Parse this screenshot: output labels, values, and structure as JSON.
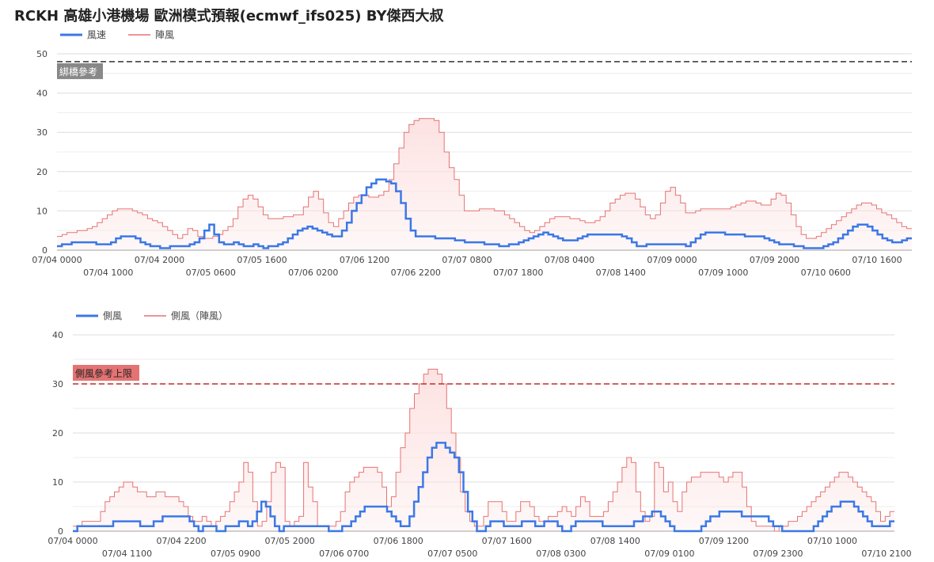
{
  "title": "RCKH 高雄小港機場 歐洲模式預報(ecmwf_ifs025)  BY傑西大叔",
  "chart_data": [
    {
      "type": "line",
      "legend_placement": "top-left",
      "grid": true,
      "ylim": [
        0,
        50
      ],
      "yticks": [
        0,
        10,
        20,
        30,
        40,
        50
      ],
      "x_tick_labels_top": [
        "07/04 0000",
        "07/04 2000",
        "07/05 1600",
        "07/06 1200",
        "07/07 0800",
        "07/08 0400",
        "07/09 0000",
        "07/09 2000",
        "07/10 1600"
      ],
      "x_tick_labels_bottom": [
        "07/04 1000",
        "07/05 0600",
        "07/06 0200",
        "07/06 2200",
        "07/07 1800",
        "07/08 1400",
        "07/09 1000",
        "07/10 0600"
      ],
      "reference_line": {
        "value": 48,
        "label": "綁橋參考",
        "color": "#333333",
        "label_bg": "#888888"
      },
      "colors": {
        "line": "#3b78e7",
        "gust": "#e57373",
        "fill": "#fde2e2"
      },
      "series": [
        {
          "name": "風速",
          "values": [
            1,
            1.5,
            1.5,
            2,
            2,
            2,
            2,
            2,
            1.5,
            1.5,
            1.5,
            2,
            3,
            3.5,
            3.5,
            3.5,
            3,
            2,
            1.5,
            1,
            1,
            0.5,
            0.5,
            1,
            1,
            1,
            1,
            1.5,
            2,
            3,
            5,
            6.5,
            4,
            2,
            1.5,
            1.5,
            2,
            1.5,
            1,
            1,
            1.5,
            1,
            0.5,
            1,
            1,
            1.5,
            2,
            3,
            4,
            5,
            5.5,
            6,
            5.5,
            5,
            4.5,
            4,
            3.5,
            3.5,
            5,
            7,
            10,
            12,
            14,
            16,
            17,
            18,
            18,
            17.5,
            17,
            15,
            12,
            8,
            5,
            3.5,
            3.5,
            3.5,
            3.5,
            3,
            3,
            3,
            3,
            2.5,
            2.5,
            2,
            2,
            2,
            2,
            1.5,
            1.5,
            1.5,
            1,
            1,
            1.5,
            1.5,
            2,
            2.5,
            3,
            3.5,
            4,
            4.5,
            4,
            3.5,
            3,
            2.5,
            2.5,
            2.5,
            3,
            3.5,
            4,
            4,
            4,
            4,
            4,
            4,
            4,
            3.5,
            3,
            2,
            1,
            1,
            1.5,
            1.5,
            1.5,
            1.5,
            1.5,
            1.5,
            1.5,
            1.5,
            1,
            2,
            3,
            4,
            4.5,
            4.5,
            4.5,
            4.5,
            4,
            4,
            4,
            4,
            3.5,
            3.5,
            3.5,
            3.5,
            3,
            2.5,
            2,
            1.5,
            1.5,
            1.5,
            1,
            1,
            0.5,
            0.5,
            0.5,
            0.5,
            1,
            1.5,
            2,
            3,
            4,
            5,
            6,
            6.5,
            6.5,
            6,
            5,
            4,
            3,
            2.5,
            2,
            2,
            2.5,
            3
          ]
        },
        {
          "name": "陣風",
          "values": [
            3.5,
            4,
            4.5,
            4.5,
            5,
            5,
            5.5,
            6,
            7,
            8,
            9,
            10,
            10.5,
            10.5,
            10.5,
            10,
            9.5,
            9,
            8,
            7.5,
            7,
            6,
            5,
            4,
            3,
            4,
            5.5,
            5,
            3.5,
            3,
            3,
            3.5,
            4,
            5,
            6,
            8,
            11,
            13,
            14,
            13,
            11,
            9,
            8,
            8,
            8,
            8.5,
            8.5,
            9,
            9,
            11,
            13.5,
            15,
            13,
            9.5,
            7,
            6,
            8,
            10,
            12,
            13.5,
            14,
            14,
            13.5,
            13.5,
            14,
            15,
            18,
            22,
            26,
            30,
            32,
            33,
            33.5,
            33.5,
            33.5,
            33,
            30,
            25,
            21,
            18,
            14,
            10,
            10,
            10,
            10.5,
            10.5,
            10.5,
            10,
            10,
            9,
            8,
            7,
            6,
            5,
            4.5,
            5,
            6,
            7,
            8,
            8.5,
            8.5,
            8.5,
            8,
            8,
            7.5,
            7,
            7,
            7.5,
            8.5,
            10,
            12,
            13,
            14,
            14.5,
            14.5,
            13,
            11,
            9,
            8,
            9,
            12,
            15,
            16,
            14,
            12,
            9.5,
            9.5,
            10,
            10.5,
            10.5,
            10.5,
            10.5,
            10.5,
            10.5,
            11,
            11.5,
            12,
            12.5,
            12.5,
            12,
            11.5,
            11.5,
            13,
            14.5,
            14,
            12,
            9,
            6,
            4,
            3,
            3,
            3.5,
            4.5,
            5.5,
            6.5,
            7.5,
            8.5,
            9.5,
            10.5,
            11.5,
            12,
            12,
            11.5,
            10.5,
            9.5,
            9,
            8,
            7,
            6,
            5.5
          ]
        }
      ]
    },
    {
      "type": "line",
      "legend_placement": "top-left",
      "grid": true,
      "ylim": [
        0,
        40
      ],
      "yticks": [
        0,
        10,
        20,
        30,
        40
      ],
      "x_tick_labels_top": [
        "07/04 0000",
        "07/04 2200",
        "07/05 2000",
        "07/06 1800",
        "07/07 1600",
        "07/08 1400",
        "07/09 1200",
        "07/10 1000"
      ],
      "x_tick_labels_bottom": [
        "07/04 1100",
        "07/05 0900",
        "07/06 0700",
        "07/07 0500",
        "07/08 0300",
        "07/09 0100",
        "07/09 2300",
        "07/10 2100"
      ],
      "reference_line": {
        "value": 30,
        "label": "側風參考上限",
        "color": "#c62828",
        "label_bg": "#e57373"
      },
      "colors": {
        "line": "#3b78e7",
        "gust": "#e57373",
        "fill": "#fde2e2"
      },
      "series": [
        {
          "name": "側風",
          "values": [
            0,
            1,
            1,
            1,
            1,
            1,
            1,
            1,
            1,
            2,
            2,
            2,
            2,
            2,
            2,
            1,
            1,
            1,
            2,
            2,
            3,
            3,
            3,
            3,
            3,
            3,
            2,
            1,
            0,
            1,
            1,
            1,
            0,
            0,
            1,
            1,
            1,
            2,
            2,
            1,
            2,
            4,
            6,
            5,
            3,
            1,
            0,
            1,
            1,
            1,
            1,
            1,
            1,
            1,
            1,
            1,
            1,
            0,
            0,
            0,
            1,
            1,
            2,
            3,
            4,
            5,
            5,
            5,
            5,
            5,
            4,
            3,
            2,
            1,
            1,
            3,
            6,
            9,
            12,
            15,
            17,
            18,
            18,
            17,
            16,
            15,
            12,
            8,
            4,
            2,
            0,
            0,
            1,
            2,
            2,
            2,
            1,
            1,
            1,
            1,
            2,
            2,
            2,
            1,
            1,
            2,
            2,
            2,
            1,
            0,
            0,
            1,
            2,
            2,
            2,
            2,
            2,
            2,
            1,
            1,
            1,
            1,
            1,
            1,
            1,
            2,
            2,
            3,
            3,
            4,
            4,
            3,
            2,
            1,
            0,
            0,
            0,
            0,
            0,
            0,
            1,
            2,
            3,
            3,
            4,
            4,
            4,
            4,
            4,
            3,
            3,
            3,
            3,
            3,
            3,
            2,
            1,
            1,
            0,
            0,
            0,
            0,
            0,
            0,
            0,
            1,
            2,
            3,
            4,
            5,
            5,
            6,
            6,
            6,
            5,
            4,
            3,
            2,
            1,
            1,
            1,
            1,
            2
          ]
        },
        {
          "name": "側風（陣風）",
          "values": [
            1,
            1,
            2,
            2,
            2,
            2,
            4,
            6,
            7,
            8,
            9,
            10,
            10,
            9,
            8,
            8,
            7,
            7,
            8,
            8,
            7,
            7,
            7,
            6,
            5,
            3,
            2,
            2,
            3,
            2,
            1,
            2,
            3,
            4,
            6,
            8,
            10,
            14,
            12,
            6,
            1,
            2,
            6,
            12,
            14,
            13,
            2,
            1,
            2,
            3,
            14,
            9,
            6,
            1,
            1,
            1,
            1,
            2,
            4,
            8,
            10,
            11,
            12,
            13,
            13,
            13,
            12,
            9,
            5,
            7,
            12,
            17,
            20,
            25,
            28,
            30,
            32,
            33,
            33,
            32,
            30,
            25,
            20,
            15,
            8,
            4,
            2,
            1,
            1,
            3,
            6,
            6,
            6,
            4,
            2,
            2,
            4,
            6,
            6,
            5,
            3,
            2,
            2,
            3,
            3,
            4,
            5,
            4,
            3,
            5,
            7,
            6,
            3,
            3,
            3,
            4,
            6,
            8,
            10,
            13,
            15,
            14,
            8,
            4,
            2,
            3,
            14,
            13,
            8,
            10,
            6,
            4,
            8,
            10,
            11,
            11,
            12,
            12,
            12,
            12,
            11,
            10,
            11,
            12,
            12,
            9,
            5,
            2,
            1,
            1,
            1,
            1,
            0,
            1,
            1,
            2,
            2,
            3,
            4,
            5,
            6,
            7,
            8,
            9,
            10,
            11,
            12,
            12,
            11,
            10,
            9,
            8,
            7,
            6,
            4,
            2,
            3,
            4
          ]
        }
      ]
    }
  ]
}
